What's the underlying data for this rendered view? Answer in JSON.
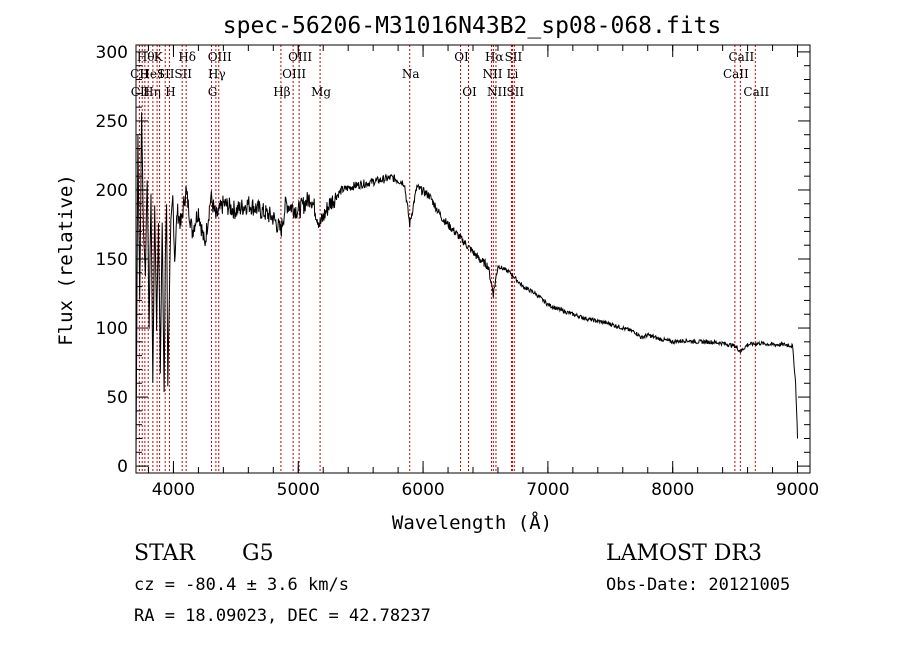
{
  "chart_data": {
    "type": "line",
    "title": "spec-56206-M31016N43B2_sp08-068.fits",
    "xlabel": "Wavelength (Å)",
    "ylabel": "Flux (relative)",
    "xlim": [
      3700,
      9100
    ],
    "ylim": [
      -5,
      305
    ],
    "xticks": [
      4000,
      5000,
      6000,
      7000,
      8000,
      9000
    ],
    "yticks": [
      0,
      50,
      100,
      150,
      200,
      250,
      300
    ],
    "line_color": "#000000",
    "marker_color": "#cc0000",
    "series": [
      {
        "name": "flux",
        "x": [
          3700,
          3715,
          3730,
          3745,
          3760,
          3775,
          3790,
          3805,
          3820,
          3835,
          3850,
          3865,
          3880,
          3895,
          3910,
          3925,
          3935,
          3945,
          3955,
          3968,
          3980,
          3995,
          4010,
          4030,
          4060,
          4100,
          4150,
          4200,
          4250,
          4300,
          4340,
          4400,
          4500,
          4600,
          4700,
          4800,
          4861,
          4900,
          5000,
          5100,
          5175,
          5250,
          5350,
          5450,
          5550,
          5650,
          5750,
          5850,
          5893,
          5950,
          6050,
          6150,
          6250,
          6350,
          6450,
          6520,
          6563,
          6600,
          6700,
          6800,
          6900,
          7000,
          7100,
          7200,
          7300,
          7400,
          7500,
          7600,
          7700,
          7750,
          7800,
          7900,
          8000,
          8100,
          8200,
          8300,
          8400,
          8500,
          8542,
          8600,
          8700,
          8800,
          8900,
          8960,
          8985,
          9000
        ],
        "y": [
          5,
          240,
          120,
          255,
          170,
          140,
          210,
          100,
          200,
          60,
          190,
          100,
          175,
          70,
          180,
          50,
          150,
          190,
          60,
          130,
          175,
          195,
          150,
          185,
          175,
          200,
          170,
          185,
          160,
          195,
          180,
          190,
          185,
          190,
          185,
          180,
          170,
          190,
          185,
          195,
          175,
          190,
          200,
          203,
          205,
          207,
          209,
          205,
          175,
          202,
          196,
          180,
          170,
          160,
          150,
          145,
          125,
          145,
          140,
          130,
          125,
          117,
          113,
          110,
          107,
          105,
          103,
          100,
          97,
          93,
          95,
          92,
          90,
          91,
          90,
          90,
          89,
          87,
          83,
          88,
          89,
          88,
          88,
          87,
          60,
          20
        ]
      }
    ],
    "line_labels": [
      {
        "text": "CII",
        "wl": 3720,
        "row": 1
      },
      {
        "text": "CII",
        "wl": 3725,
        "row": 2
      },
      {
        "text": "Hθ",
        "wl": 3770,
        "row": 0
      },
      {
        "text": "He",
        "wl": 3790,
        "row": 1
      },
      {
        "text": "Hη",
        "wl": 3820,
        "row": 2
      },
      {
        "text": "K",
        "wl": 3870,
        "row": 0
      },
      {
        "text": "I",
        "wl": 3895,
        "row": 1
      },
      {
        "text": "SII",
        "wl": 3930,
        "row": 1
      },
      {
        "text": "H",
        "wl": 3968,
        "row": 2
      },
      {
        "text": "Hδ",
        "wl": 4102,
        "row": 0
      },
      {
        "text": "SII",
        "wl": 4070,
        "row": 1
      },
      {
        "text": "OIII",
        "wl": 4363,
        "row": 0
      },
      {
        "text": "Hγ",
        "wl": 4340,
        "row": 1
      },
      {
        "text": "G",
        "wl": 4305,
        "row": 2
      },
      {
        "text": "OIII",
        "wl": 5007,
        "row": 0
      },
      {
        "text": "OIII",
        "wl": 4959,
        "row": 1
      },
      {
        "text": "Hβ",
        "wl": 4861,
        "row": 2
      },
      {
        "text": "Mg",
        "wl": 5175,
        "row": 2
      },
      {
        "text": "Na",
        "wl": 5893,
        "row": 1
      },
      {
        "text": "OI",
        "wl": 6300,
        "row": 0
      },
      {
        "text": "OI",
        "wl": 6364,
        "row": 2
      },
      {
        "text": "Hα",
        "wl": 6563,
        "row": 0
      },
      {
        "text": "SII",
        "wl": 6716,
        "row": 0
      },
      {
        "text": "NII",
        "wl": 6548,
        "row": 1
      },
      {
        "text": "Li",
        "wl": 6708,
        "row": 1
      },
      {
        "text": "NII",
        "wl": 6584,
        "row": 2
      },
      {
        "text": "SII",
        "wl": 6731,
        "row": 2
      },
      {
        "text": "CaII",
        "wl": 8542,
        "row": 0
      },
      {
        "text": "CaII",
        "wl": 8498,
        "row": 1
      },
      {
        "text": "CaII",
        "wl": 8662,
        "row": 2
      }
    ],
    "line_positions": [
      3727,
      3750,
      3771,
      3798,
      3835,
      3869,
      3889,
      3934,
      3968,
      4070,
      4102,
      4305,
      4340,
      4363,
      4861,
      4959,
      5007,
      5175,
      5893,
      6300,
      6364,
      6548,
      6563,
      6584,
      6708,
      6716,
      6731,
      8498,
      8542,
      8662
    ]
  },
  "info": {
    "class": "STAR",
    "subclass": "G5",
    "survey": "LAMOST DR3",
    "cz": "cz = -80.4 ± 3.6 km/s",
    "obs_date": "Obs-Date: 20121005",
    "coords": "RA =  18.09023, DEC =  42.78237"
  }
}
